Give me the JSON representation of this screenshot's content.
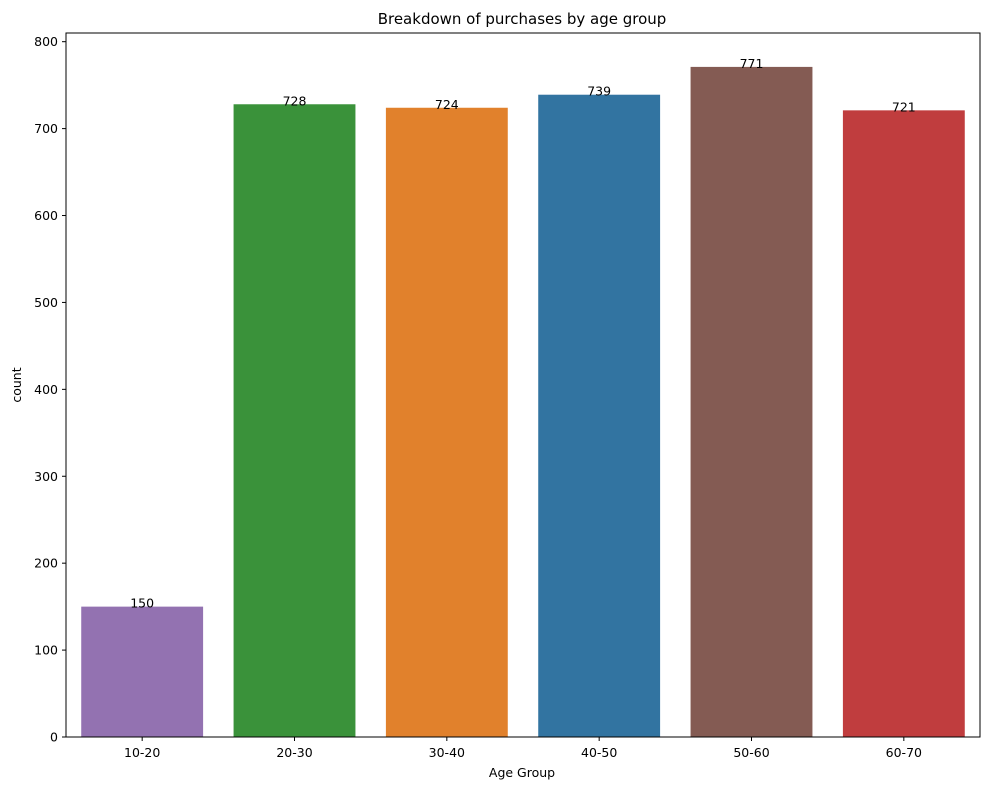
{
  "chart_data": {
    "type": "bar",
    "title": "Breakdown of purchases by age group",
    "xlabel": "Age Group",
    "ylabel": "count",
    "categories": [
      "10-20",
      "20-30",
      "30-40",
      "40-50",
      "50-60",
      "60-70"
    ],
    "values": [
      150,
      728,
      724,
      739,
      771,
      721
    ],
    "data_labels": [
      "150",
      "728",
      "724",
      "739",
      "771",
      "721"
    ],
    "colors": [
      "#9372b1",
      "#3a923a",
      "#e1812c",
      "#3274a1",
      "#845b53",
      "#c03d3e"
    ],
    "yticks": [
      0,
      100,
      200,
      300,
      400,
      500,
      600,
      700,
      800
    ],
    "ylim": [
      0,
      810
    ],
    "grid": false,
    "legend": "none"
  }
}
